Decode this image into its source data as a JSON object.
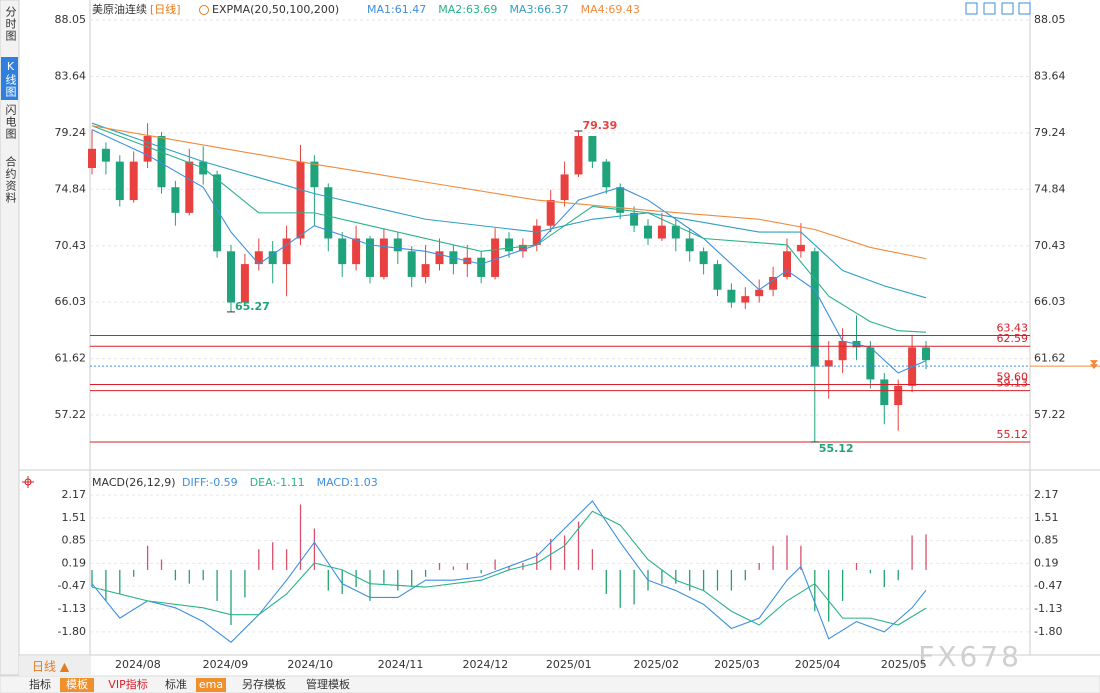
{
  "header": {
    "instrument": "美原油连续",
    "period": "[日线]",
    "indicator": "EXPMA(20,50,100,200)"
  },
  "sidebar": {
    "tabs": [
      "分时图",
      "K线图",
      "闪电图",
      "合约资料"
    ]
  },
  "toolbar": {
    "period": "日线 ▲",
    "buttons": [
      "指标",
      "模板",
      "VIP指标",
      "标准",
      "ema",
      "另存模板",
      "管理模板"
    ]
  },
  "watermark": "FX678",
  "chart_data": [
    {
      "type": "candlestick",
      "up_color": "#e8413f",
      "down_color": "#1fa37a",
      "open": [
        76.5,
        78,
        77,
        74,
        77,
        79,
        75,
        73,
        77,
        76,
        70,
        66,
        69,
        70,
        69,
        71,
        77,
        75,
        71,
        69,
        71,
        68,
        71,
        70,
        68,
        69,
        70,
        69,
        69.5,
        68,
        71,
        70,
        70.5,
        72,
        74,
        76,
        79,
        77,
        75,
        73,
        72,
        71,
        72,
        71,
        70,
        69,
        67,
        66,
        66.5,
        67,
        68,
        70,
        70,
        61,
        61.5,
        63,
        62.5,
        60,
        58,
        59.5,
        62.5
      ],
      "high": [
        79.5,
        78.5,
        77.5,
        77.8,
        80,
        79.3,
        75.5,
        78,
        78.2,
        76.3,
        70.5,
        69.8,
        71,
        70.8,
        72,
        78.3,
        77.5,
        75.3,
        71.5,
        72,
        71.2,
        71.8,
        71.5,
        70.4,
        70.5,
        71,
        70.5,
        70.5,
        70,
        71.8,
        71.5,
        71,
        72.5,
        74.8,
        77,
        79.39,
        79,
        77.2,
        75.3,
        73.5,
        72.5,
        73,
        72.5,
        71.8,
        70.3,
        69.3,
        67.5,
        67.2,
        67.8,
        68.8,
        71,
        72.2,
        70.3,
        63,
        64,
        65,
        63,
        60.5,
        60,
        63.5,
        63
      ],
      "low": [
        76,
        76,
        73.5,
        73.8,
        76.5,
        74.5,
        72,
        72.8,
        75.2,
        69.5,
        65.27,
        65.8,
        68.5,
        67.5,
        66.5,
        70.5,
        72,
        70,
        68,
        68.5,
        67.5,
        67.8,
        69,
        67.2,
        67.5,
        68.5,
        68.2,
        68,
        67.5,
        67.8,
        69.5,
        69.5,
        70,
        71.5,
        73.5,
        75.8,
        76.5,
        74.5,
        72.5,
        71.5,
        70.5,
        70.8,
        70,
        69.2,
        68.2,
        66.5,
        65.6,
        65.5,
        66,
        66.5,
        67.8,
        69.5,
        55.12,
        58.5,
        60.5,
        61.5,
        59.3,
        56.5,
        56,
        59,
        60.8
      ],
      "close": [
        78,
        77,
        74,
        77,
        79,
        75,
        73,
        77,
        76,
        70,
        66,
        69,
        70,
        69,
        71,
        77,
        75,
        71,
        69,
        71,
        68,
        71,
        70,
        68,
        69,
        70,
        69,
        69.5,
        68,
        71,
        70,
        70.5,
        72,
        74,
        76,
        79,
        77,
        75,
        73,
        72,
        71,
        72,
        71,
        70,
        69,
        67,
        66,
        66.5,
        67,
        68,
        70,
        70.5,
        61,
        61.5,
        63,
        62.5,
        60,
        58,
        59.5,
        62.5,
        61.5
      ],
      "xlim": [
        0,
        60
      ],
      "xticks": [
        {
          "value": 3.3,
          "label": "2024/08"
        },
        {
          "value": 9.6,
          "label": "2024/09"
        },
        {
          "value": 15.7,
          "label": "2024/10"
        },
        {
          "value": 22.2,
          "label": "2024/11"
        },
        {
          "value": 28.3,
          "label": "2024/12"
        },
        {
          "value": 34.3,
          "label": "2025/01"
        },
        {
          "value": 40.6,
          "label": "2025/02"
        },
        {
          "value": 46.4,
          "label": "2025/03"
        },
        {
          "value": 52.2,
          "label": "2025/04"
        },
        {
          "value": 58.4,
          "label": "2025/05"
        }
      ],
      "ylim": [
        52.93,
        88.99
      ],
      "yticks": [
        88.05,
        83.64,
        79.24,
        74.84,
        70.43,
        66.03,
        61.62,
        57.22
      ],
      "series": [
        {
          "name": "MA1:61.47",
          "color": "#3d8fe0",
          "x": [
            0,
            4,
            8,
            10,
            12,
            16,
            20,
            24,
            28,
            32,
            35,
            38,
            40,
            44,
            48,
            50,
            52,
            54,
            56,
            58,
            60
          ],
          "values": [
            79.5,
            77.5,
            75,
            71.5,
            69,
            72,
            70.5,
            70,
            69,
            70.5,
            74,
            75,
            74,
            71,
            67,
            68.5,
            67,
            63,
            62.5,
            60.5,
            61.47
          ]
        },
        {
          "name": "MA2:63.69",
          "color": "#29b28a",
          "x": [
            0,
            8,
            12,
            16,
            20,
            28,
            32,
            36,
            40,
            44,
            50,
            53,
            56,
            58,
            60
          ],
          "values": [
            79.8,
            76.5,
            73,
            73,
            72,
            70,
            70.5,
            73.5,
            73,
            71,
            70.5,
            66.5,
            64.5,
            63.8,
            63.69
          ]
        },
        {
          "name": "MA3:66.37",
          "color": "#2f9fc4",
          "x": [
            0,
            8,
            16,
            24,
            32,
            36,
            40,
            48,
            51,
            54,
            57,
            60
          ],
          "values": [
            80,
            77,
            74.5,
            72.5,
            71.5,
            72.5,
            73,
            71.5,
            71.5,
            68.5,
            67.3,
            66.37
          ]
        },
        {
          "name": "MA4:69.43",
          "color": "#f08a3c",
          "x": [
            0,
            8,
            16,
            24,
            32,
            36,
            40,
            48,
            52,
            56,
            60
          ],
          "values": [
            79.8,
            78.3,
            76.8,
            75.4,
            74,
            73.6,
            73.2,
            72.5,
            71.7,
            70.3,
            69.43
          ]
        }
      ],
      "levels": [
        63.43,
        62.59,
        {
          "value": 59.6,
          "label": "59.60"
        },
        59.13,
        55.12
      ],
      "level_color": "#d9202a",
      "annotations": [
        {
          "value": 79.39,
          "x": 35,
          "color": "#e8413f"
        },
        {
          "value": 65.27,
          "x": 10,
          "color": "#1fa37a"
        },
        {
          "value": 55.12,
          "x": 52,
          "color": "#1fa37a"
        }
      ],
      "last_price": 61.04
    },
    {
      "type": "macd",
      "title": "MACD(26,12,9)",
      "up_color": "#d9506b",
      "down_color": "#22a36e",
      "xlim": [
        0,
        60
      ],
      "ylim": [
        -2.47,
        2.55
      ],
      "yticks": [
        2.17,
        1.51,
        0.85,
        0.19,
        -0.47,
        -1.13,
        {
          "value": -1.8,
          "label": "-1.80"
        }
      ],
      "histogram": {
        "name": "MACD:1.03",
        "color": "#3d8fe0",
        "values": [
          -0.5,
          -0.9,
          -0.7,
          -0.2,
          0.7,
          0.3,
          -0.3,
          -0.4,
          -0.3,
          -0.9,
          -1.6,
          -0.8,
          0.6,
          0.8,
          0.6,
          1.9,
          1.2,
          -0.6,
          -0.7,
          -0.5,
          -0.9,
          -0.4,
          -0.6,
          -0.5,
          -0.2,
          0.2,
          0.1,
          0.2,
          -0.1,
          0.3,
          0.1,
          0.2,
          0.5,
          0.9,
          1.0,
          1.4,
          0.6,
          -0.7,
          -1.1,
          -1.0,
          -0.6,
          -0.4,
          -0.4,
          -0.6,
          -0.6,
          -0.6,
          -0.6,
          -0.3,
          0.2,
          0.7,
          1.0,
          0.7,
          -1.2,
          -1.5,
          -0.9,
          0.2,
          -0.1,
          -0.5,
          -0.3,
          1.0,
          1.03
        ]
      },
      "series": [
        {
          "name": "DIFF:-0.59",
          "color": "#3d8fe0",
          "x": [
            0,
            2,
            4,
            6,
            8,
            10,
            12,
            14,
            16,
            18,
            20,
            22,
            24,
            26,
            28,
            30,
            32,
            34,
            36,
            38,
            40,
            42,
            44,
            46,
            48,
            50,
            51,
            53,
            55,
            57,
            59,
            60
          ],
          "values": [
            -0.4,
            -1.4,
            -0.9,
            -1.1,
            -1.5,
            -2.1,
            -1.3,
            -0.3,
            0.8,
            -0.4,
            -0.8,
            -0.8,
            -0.3,
            -0.3,
            -0.2,
            0.1,
            0.4,
            1.2,
            2.0,
            0.8,
            -0.3,
            -0.6,
            -1.0,
            -1.7,
            -1.4,
            -0.3,
            0.1,
            -2.0,
            -1.5,
            -1.8,
            -1.1,
            -0.59
          ]
        },
        {
          "name": "DEA:-1.11",
          "color": "#29b28a",
          "x": [
            0,
            4,
            8,
            10,
            12,
            14,
            16,
            18,
            20,
            24,
            28,
            30,
            32,
            34,
            36,
            38,
            40,
            42,
            44,
            46,
            48,
            50,
            52,
            54,
            56,
            58,
            60
          ],
          "values": [
            -0.5,
            -0.9,
            -1.1,
            -1.3,
            -1.3,
            -0.7,
            0.2,
            0.0,
            -0.4,
            -0.5,
            -0.3,
            0.0,
            0.2,
            0.7,
            1.7,
            1.3,
            0.3,
            -0.3,
            -0.6,
            -1.2,
            -1.6,
            -0.9,
            -0.4,
            -1.4,
            -1.4,
            -1.6,
            -1.11
          ]
        }
      ]
    }
  ]
}
